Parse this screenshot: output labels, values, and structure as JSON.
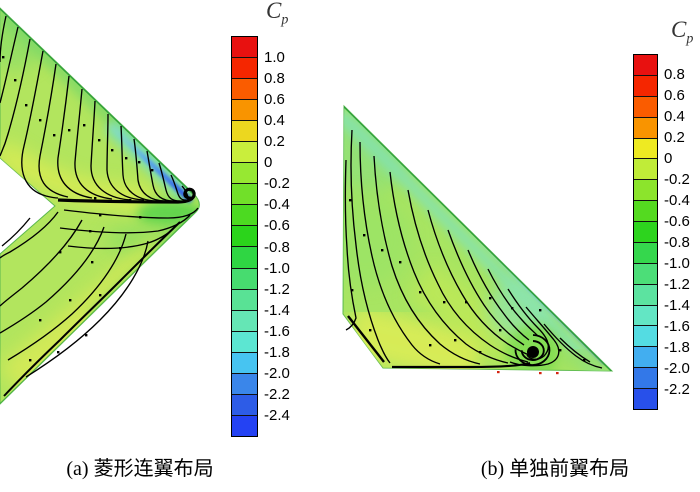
{
  "page": {
    "background": "#ffffff"
  },
  "figure": {
    "panels": [
      {
        "id": "a",
        "caption": "(a) 菱形连翼布局",
        "colorbar": {
          "title_main": "C",
          "title_sub": "p",
          "tick_labels": [
            "1.0",
            "0.8",
            "0.6",
            "0.4",
            "0.2",
            "0",
            "-0.2",
            "-0.4",
            "-0.6",
            "-0.8",
            "-1.0",
            "-1.2",
            "-1.4",
            "-1.6",
            "-1.8",
            "-2.0",
            "-2.2",
            "-2.4"
          ],
          "cell_colors": [
            "#e81110",
            "#f52600",
            "#fa5c00",
            "#f99400",
            "#ecd71f",
            "#c9ee3c",
            "#97e832",
            "#71e029",
            "#4cda21",
            "#2bd41b",
            "#2fd643",
            "#47dc6f",
            "#59e295",
            "#65e6b5",
            "#5ce6d2",
            "#47c4f1",
            "#3a86ea",
            "#2d5ce7",
            "#2442f3"
          ]
        }
      },
      {
        "id": "b",
        "caption": "(b) 单独前翼布局",
        "colorbar": {
          "title_main": "C",
          "title_sub": "p",
          "tick_labels": [
            "0.8",
            "0.6",
            "0.4",
            "0.2",
            "0",
            "-0.2",
            "-0.4",
            "-0.6",
            "-0.8",
            "-1.0",
            "-1.2",
            "-1.4",
            "-1.6",
            "-1.8",
            "-2.0",
            "-2.2"
          ],
          "cell_colors": [
            "#e81110",
            "#f52600",
            "#fa5c00",
            "#f99400",
            "#eeea22",
            "#c0ec38",
            "#8ce42c",
            "#54da20",
            "#2dd41e",
            "#35d74d",
            "#4cde78",
            "#5ce3a0",
            "#63e6c4",
            "#54dce2",
            "#42aef0",
            "#3378e8",
            "#2850ea"
          ]
        }
      }
    ]
  },
  "chart_data": [
    {
      "type": "heatmap",
      "subtype": "surface-pressure-contour-with-streamlines",
      "panel_label": "(a) 菱形连翼布局",
      "colorbar_title": "Cp",
      "levels": [
        1.0,
        0.8,
        0.6,
        0.4,
        0.2,
        0,
        -0.2,
        -0.4,
        -0.6,
        -0.8,
        -1.0,
        -1.2,
        -1.4,
        -1.6,
        -1.8,
        -2.0,
        -2.2,
        -2.4
      ],
      "level_step": 0.2,
      "colormap_top_to_bottom": [
        "#e81110",
        "#f52600",
        "#fa5c00",
        "#f99400",
        "#ecd71f",
        "#c9ee3c",
        "#97e832",
        "#71e029",
        "#4cda21",
        "#2bd41b",
        "#2fd643",
        "#47dc6f",
        "#59e295",
        "#65e6b5",
        "#5ce6d2",
        "#47c4f1",
        "#3a86ea",
        "#2d5ce7",
        "#2442f3"
      ],
      "legend_position": "right-colorbar",
      "surface_notes": [
        "diamond joined-wing planform drawn as a chevron pointing right",
        "surface mostly yellow-green, Cp roughly 0 to -0.6",
        "narrow blue leading-edge suction strip near the wing joint, Cp about -2.0 to -2.4",
        "black surface streamlines converge into a thick separation line with a small vortex hook at the joint"
      ]
    },
    {
      "type": "heatmap",
      "subtype": "surface-pressure-contour-with-streamlines",
      "panel_label": "(b) 单独前翼布局",
      "colorbar_title": "Cp",
      "levels": [
        0.8,
        0.6,
        0.4,
        0.2,
        0,
        -0.2,
        -0.4,
        -0.6,
        -0.8,
        -1.0,
        -1.2,
        -1.4,
        -1.6,
        -1.8,
        -2.0,
        -2.2
      ],
      "level_step": 0.2,
      "colormap_top_to_bottom": [
        "#e81110",
        "#f52600",
        "#fa5c00",
        "#f99400",
        "#eeea22",
        "#c0ec38",
        "#8ce42c",
        "#54da20",
        "#2dd41e",
        "#35d74d",
        "#4cde78",
        "#5ce3a0",
        "#63e6c4",
        "#54dce2",
        "#42aef0",
        "#3378e8",
        "#2850ea"
      ],
      "legend_position": "right-colorbar",
      "surface_notes": [
        "isolated forward (delta) wing planform, leading edge swept about 45 degrees",
        "spiral vortex focus on the surface near the trailing edge at about three-quarter span",
        "blue suction strip along the leading edge near the tip, Cp about -2.0 to -2.2",
        "inboard rear surface yellow, Cp about 0 to 0.2"
      ]
    }
  ]
}
